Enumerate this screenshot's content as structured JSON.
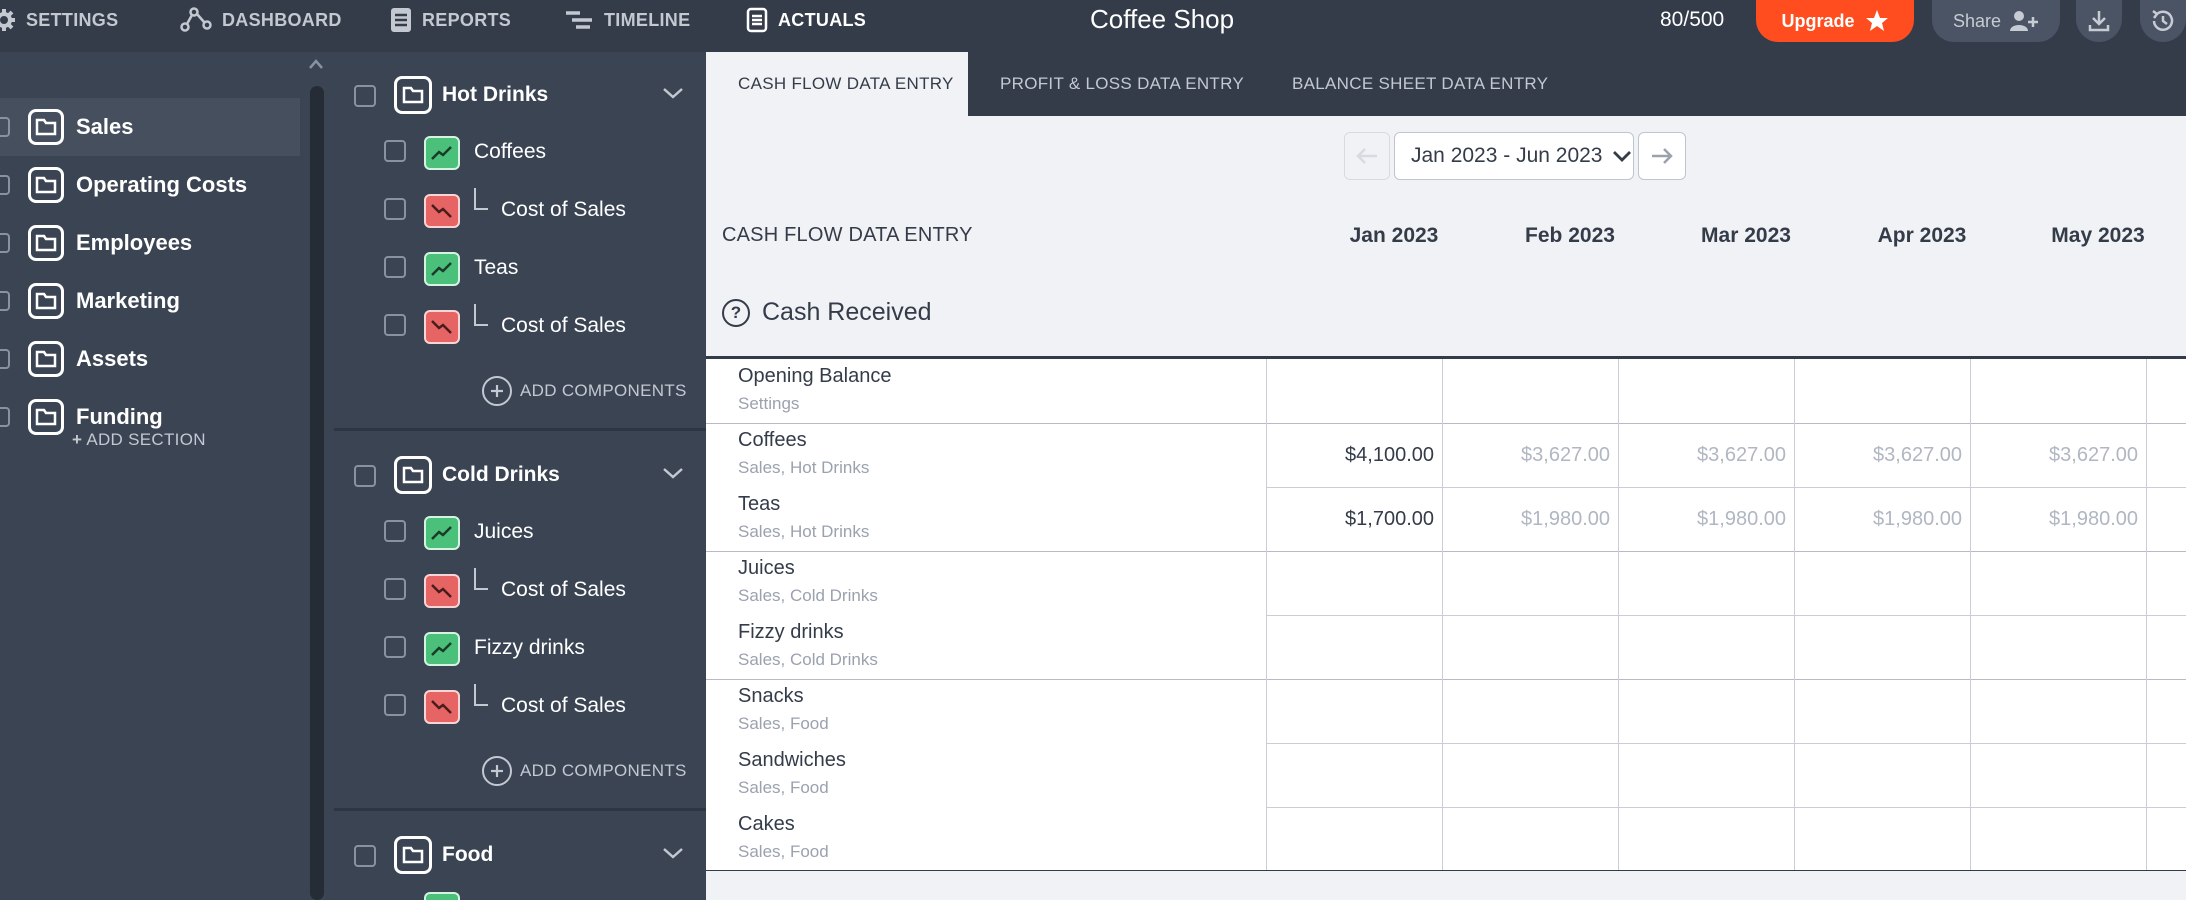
{
  "nav": {
    "settings": "SETTINGS",
    "dashboard": "DASHBOARD",
    "reports": "REPORTS",
    "timeline": "TIMELINE",
    "actuals": "ACTUALS",
    "title": "Coffee Shop",
    "count": "80/500",
    "upgrade": "Upgrade",
    "share": "Share"
  },
  "sidebar": {
    "items": [
      {
        "label": "Sales"
      },
      {
        "label": "Operating Costs"
      },
      {
        "label": "Employees"
      },
      {
        "label": "Marketing"
      },
      {
        "label": "Assets"
      },
      {
        "label": "Funding"
      }
    ],
    "add_section": "ADD SECTION"
  },
  "midpanel": {
    "groups": [
      {
        "label": "Hot Drinks",
        "components": [
          "Coffees",
          "Cost of Sales",
          "Teas",
          "Cost of Sales"
        ],
        "add": "ADD COMPONENTS"
      },
      {
        "label": "Cold Drinks",
        "components": [
          "Juices",
          "Cost of Sales",
          "Fizzy drinks",
          "Cost of Sales"
        ],
        "add": "ADD COMPONENTS"
      },
      {
        "label": "Food"
      }
    ]
  },
  "tabs": [
    "CASH FLOW DATA ENTRY",
    "PROFIT & LOSS DATA ENTRY",
    "BALANCE SHEET DATA ENTRY"
  ],
  "period": {
    "selected": "Jan 2023 - Jun 2023"
  },
  "table": {
    "title": "CASH FLOW DATA ENTRY",
    "months": [
      "Jan 2023",
      "Feb 2023",
      "Mar 2023",
      "Apr 2023",
      "May 2023"
    ],
    "section": "Cash Received",
    "help_glyph": "?",
    "rows": [
      {
        "name": "Opening Balance",
        "sub": "Settings",
        "values": [
          "",
          "",
          "",
          "",
          ""
        ]
      },
      {
        "name": "Coffees",
        "sub": "Sales, Hot Drinks",
        "values": [
          "$4,100.00",
          "$3,627.00",
          "$3,627.00",
          "$3,627.00",
          "$3,627.00"
        ]
      },
      {
        "name": "Teas",
        "sub": "Sales, Hot Drinks",
        "values": [
          "$1,700.00",
          "$1,980.00",
          "$1,980.00",
          "$1,980.00",
          "$1,980.00"
        ]
      },
      {
        "name": "Juices",
        "sub": "Sales, Cold Drinks",
        "values": [
          "",
          "",
          "",
          "",
          ""
        ]
      },
      {
        "name": "Fizzy drinks",
        "sub": "Sales, Cold Drinks",
        "values": [
          "",
          "",
          "",
          "",
          ""
        ]
      },
      {
        "name": "Snacks",
        "sub": "Sales, Food",
        "values": [
          "",
          "",
          "",
          "",
          ""
        ]
      },
      {
        "name": "Sandwiches",
        "sub": "Sales, Food",
        "values": [
          "",
          "",
          "",
          "",
          ""
        ]
      },
      {
        "name": "Cakes",
        "sub": "Sales, Food",
        "values": [
          "",
          "",
          "",
          "",
          ""
        ]
      }
    ]
  },
  "icons": {
    "settings": "gear-icon",
    "dashboard": "nodes-icon",
    "reports": "document-icon",
    "timeline": "timeline-icon",
    "actuals": "ledger-icon",
    "upgrade": "star-icon",
    "share": "add-user-icon",
    "download": "download-icon",
    "history": "history-icon",
    "folder": "folder-icon",
    "revenue": "trend-up-icon",
    "cost": "trend-down-icon"
  },
  "colors": {
    "nav_bg": "#343c4a",
    "panel_bg": "#3b4453",
    "accent_orange": "#ff4d1f",
    "revenue_green": "#4ac07b",
    "cost_red": "#e66464",
    "content_bg": "#f1f2f5"
  }
}
